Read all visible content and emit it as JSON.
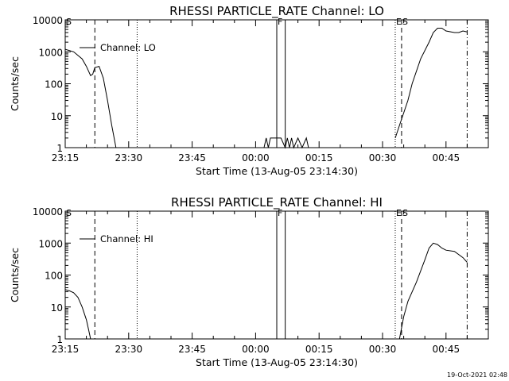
{
  "footer": {
    "timestamp": "19-Oct-2021 02:48"
  },
  "chart_data": [
    {
      "type": "line",
      "title": "RHESSI PARTICLE_RATE Channel: LO",
      "xlabel": "Start Time (13-Aug-05 23:14:30)",
      "ylabel": "Counts/sec",
      "y_scale": "log",
      "xlim": [
        "23:15",
        "00:55"
      ],
      "ylim": [
        1,
        10000
      ],
      "x_ticks": [
        "23:15",
        "23:30",
        "23:45",
        "00:00",
        "00:15",
        "00:30",
        "00:45"
      ],
      "y_ticks": [
        "1",
        "10",
        "100",
        "1000",
        "10000"
      ],
      "legend": {
        "position": "top-left",
        "entries": [
          "Channel: LO"
        ]
      },
      "series": [
        {
          "name": "Channel: LO",
          "segments": [
            [
              [
                "23:15",
                1200
              ],
              [
                "23:17",
                1000
              ],
              [
                "23:19",
                600
              ],
              [
                "23:20",
                350
              ],
              [
                "23:21",
                180
              ],
              [
                "23:21:30",
                200
              ],
              [
                "23:22",
                320
              ],
              [
                "23:23",
                350
              ],
              [
                "23:24",
                150
              ],
              [
                "23:25",
                30
              ],
              [
                "23:26",
                5
              ],
              [
                "23:27",
                1
              ]
            ],
            [
              [
                "00:02",
                1
              ],
              [
                "00:02:30",
                2
              ],
              [
                "00:03",
                1
              ],
              [
                "00:03:30",
                2
              ],
              [
                "00:04",
                2
              ],
              [
                "00:05",
                2
              ],
              [
                "00:06",
                2
              ],
              [
                "00:07",
                1
              ],
              [
                "00:07:30",
                2
              ],
              [
                "00:08",
                1
              ],
              [
                "00:08:30",
                2
              ],
              [
                "00:09",
                1
              ],
              [
                "00:10",
                2
              ],
              [
                "00:11",
                1
              ],
              [
                "00:12",
                2
              ],
              [
                "00:12:30",
                1
              ]
            ],
            [
              [
                "00:33",
                2
              ],
              [
                "00:34",
                5
              ],
              [
                "00:36",
                30
              ],
              [
                "00:37",
                100
              ],
              [
                "00:39",
                600
              ],
              [
                "00:41",
                2000
              ],
              [
                "00:42",
                4000
              ],
              [
                "00:43",
                5500
              ],
              [
                "00:44",
                5500
              ],
              [
                "00:45",
                4500
              ],
              [
                "00:47",
                4000
              ],
              [
                "00:48",
                4000
              ],
              [
                "00:49",
                4500
              ],
              [
                "00:50",
                4200
              ]
            ]
          ]
        }
      ],
      "markers": [
        {
          "time": "23:15",
          "style": "none",
          "label": "S"
        },
        {
          "time": "23:22",
          "style": "dashed",
          "label": ""
        },
        {
          "time": "23:32",
          "style": "dotted",
          "label": ""
        },
        {
          "time": "00:05",
          "style": "solid",
          "label": "F"
        },
        {
          "time": "00:07",
          "style": "solid",
          "label": ""
        },
        {
          "time": "00:33",
          "style": "dotted",
          "label": "E"
        },
        {
          "time": "00:34:30",
          "style": "dashed",
          "label": "S"
        },
        {
          "time": "00:50",
          "style": "dashdot",
          "label": ""
        }
      ]
    },
    {
      "type": "line",
      "title": "RHESSI PARTICLE_RATE Channel: HI",
      "xlabel": "Start Time (13-Aug-05 23:14:30)",
      "ylabel": "Counts/sec",
      "y_scale": "log",
      "xlim": [
        "23:15",
        "00:55"
      ],
      "ylim": [
        1,
        10000
      ],
      "x_ticks": [
        "23:15",
        "23:30",
        "23:45",
        "00:00",
        "00:15",
        "00:30",
        "00:45"
      ],
      "y_ticks": [
        "1",
        "10",
        "100",
        "1000",
        "10000"
      ],
      "legend": {
        "position": "top-left",
        "entries": [
          "Channel: HI"
        ]
      },
      "series": [
        {
          "name": "Channel: HI",
          "segments": [
            [
              [
                "23:15",
                35
              ],
              [
                "23:16",
                32
              ],
              [
                "23:17",
                28
              ],
              [
                "23:18",
                20
              ],
              [
                "23:19",
                10
              ],
              [
                "23:20",
                4
              ],
              [
                "23:20:30",
                2
              ],
              [
                "23:21",
                1
              ]
            ],
            [
              [
                "00:34",
                1
              ],
              [
                "00:35",
                5
              ],
              [
                "00:36",
                15
              ],
              [
                "00:38",
                60
              ],
              [
                "00:40",
                300
              ],
              [
                "00:41",
                700
              ],
              [
                "00:42",
                1000
              ],
              [
                "00:43",
                900
              ],
              [
                "00:44",
                700
              ],
              [
                "00:45",
                600
              ],
              [
                "00:47",
                550
              ],
              [
                "00:49",
                350
              ],
              [
                "00:50",
                250
              ]
            ]
          ]
        }
      ],
      "markers": [
        {
          "time": "23:15",
          "style": "none",
          "label": "S"
        },
        {
          "time": "23:22",
          "style": "dashed",
          "label": ""
        },
        {
          "time": "23:32",
          "style": "dotted",
          "label": ""
        },
        {
          "time": "00:05",
          "style": "solid",
          "label": "F"
        },
        {
          "time": "00:07",
          "style": "solid",
          "label": ""
        },
        {
          "time": "00:33",
          "style": "dotted",
          "label": "E"
        },
        {
          "time": "00:34:30",
          "style": "dashed",
          "label": "S"
        },
        {
          "time": "00:50",
          "style": "dashdot",
          "label": ""
        }
      ]
    }
  ]
}
